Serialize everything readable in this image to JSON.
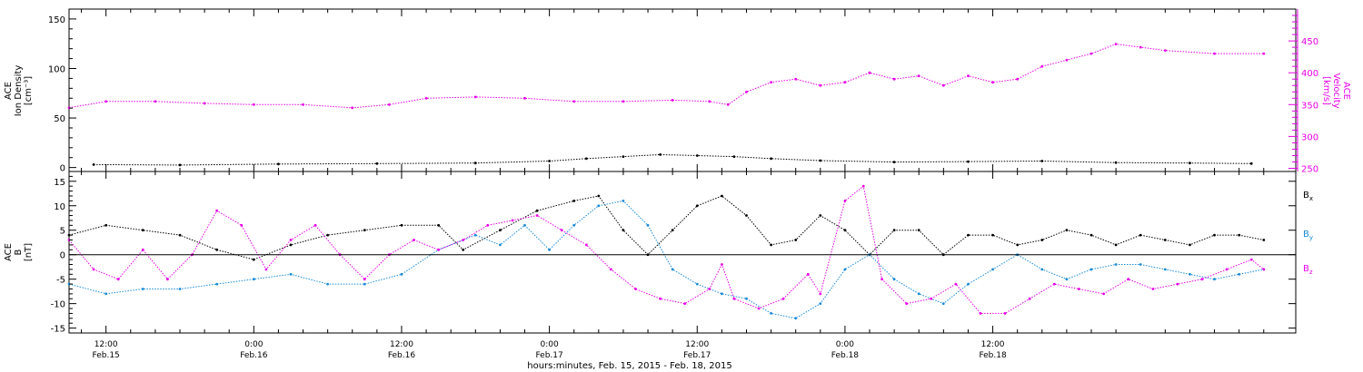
{
  "figure": {
    "xlabel": "hours:minutes, Feb. 15, 2015 - Feb. 18, 2015"
  },
  "x_ticks": [
    {
      "time": "12:00",
      "date": "Feb.15"
    },
    {
      "time": "0:00",
      "date": "Feb.16"
    },
    {
      "time": "12:00",
      "date": "Feb.16"
    },
    {
      "time": "0:00",
      "date": "Feb.17"
    },
    {
      "time": "12:00",
      "date": "Feb.17"
    },
    {
      "time": "0:00",
      "date": "Feb.18"
    },
    {
      "time": "12:00",
      "date": "Feb.18"
    }
  ],
  "colors": {
    "black": "#000000",
    "magenta": "#e600e6",
    "blue": "#1a8ad6"
  },
  "chart_data": [
    {
      "type": "scatter",
      "panel": "top",
      "left_axis_label": [
        "ACE",
        "Ion Density",
        "[cm⁻³]"
      ],
      "right_axis_label": [
        "ACE",
        "Velocity",
        "[km/s]"
      ],
      "left_ylim": [
        -4,
        160
      ],
      "left_yticks": [
        "0",
        "50",
        "100",
        "150"
      ],
      "right_ylim": [
        245,
        500
      ],
      "right_yticks": [
        "250",
        "300",
        "350",
        "400",
        "450"
      ],
      "x_range_hours": [
        9.0,
        108.6
      ],
      "series": [
        {
          "name": "Ion Density",
          "axis": "left",
          "color": "#000000",
          "points": [
            [
              11.0,
              3.0
            ],
            [
              18.0,
              2.5
            ],
            [
              26.0,
              3.5
            ],
            [
              34.0,
              4.0
            ],
            [
              42.0,
              4.5
            ],
            [
              48.0,
              6.5
            ],
            [
              51.0,
              9.0
            ],
            [
              54.0,
              11.0
            ],
            [
              57.0,
              13.0
            ],
            [
              60.0,
              12.0
            ],
            [
              63.0,
              11.0
            ],
            [
              66.0,
              9.0
            ],
            [
              70.0,
              7.0
            ],
            [
              76.0,
              5.5
            ],
            [
              82.0,
              6.0
            ],
            [
              88.0,
              6.5
            ],
            [
              94.0,
              5.0
            ],
            [
              100.0,
              4.5
            ],
            [
              105.0,
              4.0
            ]
          ]
        },
        {
          "name": "Velocity",
          "axis": "right",
          "color": "#e600e6",
          "points": [
            [
              9.0,
              345.0
            ],
            [
              12.0,
              355.0
            ],
            [
              16.0,
              355.0
            ],
            [
              20.0,
              352.0
            ],
            [
              24.0,
              350.0
            ],
            [
              28.0,
              350.0
            ],
            [
              32.0,
              345.0
            ],
            [
              35.0,
              350.0
            ],
            [
              38.0,
              360.0
            ],
            [
              42.0,
              362.0
            ],
            [
              46.0,
              360.0
            ],
            [
              50.0,
              355.0
            ],
            [
              54.0,
              355.0
            ],
            [
              58.0,
              357.0
            ],
            [
              61.0,
              355.0
            ],
            [
              62.5,
              350.0
            ],
            [
              64.0,
              370.0
            ],
            [
              66.0,
              385.0
            ],
            [
              68.0,
              390.0
            ],
            [
              70.0,
              380.0
            ],
            [
              72.0,
              385.0
            ],
            [
              74.0,
              400.0
            ],
            [
              76.0,
              390.0
            ],
            [
              78.0,
              395.0
            ],
            [
              80.0,
              380.0
            ],
            [
              82.0,
              395.0
            ],
            [
              84.0,
              385.0
            ],
            [
              86.0,
              390.0
            ],
            [
              88.0,
              410.0
            ],
            [
              90.0,
              420.0
            ],
            [
              92.0,
              430.0
            ],
            [
              94.0,
              445.0
            ],
            [
              96.0,
              440.0
            ],
            [
              98.0,
              435.0
            ],
            [
              102.0,
              430.0
            ],
            [
              106.0,
              430.0
            ]
          ]
        }
      ]
    },
    {
      "type": "scatter",
      "panel": "bottom",
      "left_axis_label": [
        "ACE",
        "B",
        "[nT]"
      ],
      "ylim": [
        -16,
        17
      ],
      "yticks": [
        "-15",
        "-10",
        "-5",
        "0",
        "5",
        "10",
        "15"
      ],
      "x_range_hours": [
        9.0,
        108.6
      ],
      "zero_line": true,
      "legend": [
        "Bx",
        "By",
        "Bz"
      ],
      "series": [
        {
          "name": "Bx",
          "color": "#000000",
          "points": [
            [
              9.0,
              4.0
            ],
            [
              12.0,
              6.0
            ],
            [
              15.0,
              5.0
            ],
            [
              18.0,
              4.0
            ],
            [
              21.0,
              1.0
            ],
            [
              24.0,
              -1.0
            ],
            [
              27.0,
              2.0
            ],
            [
              30.0,
              4.0
            ],
            [
              33.0,
              5.0
            ],
            [
              36.0,
              6.0
            ],
            [
              39.0,
              6.0
            ],
            [
              41.0,
              1.0
            ],
            [
              44.0,
              5.0
            ],
            [
              47.0,
              9.0
            ],
            [
              50.0,
              11.0
            ],
            [
              52.0,
              12.0
            ],
            [
              54.0,
              5.0
            ],
            [
              56.0,
              0.0
            ],
            [
              58.0,
              5.0
            ],
            [
              60.0,
              10.0
            ],
            [
              62.0,
              12.0
            ],
            [
              64.0,
              8.0
            ],
            [
              66.0,
              2.0
            ],
            [
              68.0,
              3.0
            ],
            [
              70.0,
              8.0
            ],
            [
              72.0,
              5.0
            ],
            [
              74.0,
              0.0
            ],
            [
              76.0,
              5.0
            ],
            [
              78.0,
              5.0
            ],
            [
              80.0,
              0.0
            ],
            [
              82.0,
              4.0
            ],
            [
              84.0,
              4.0
            ],
            [
              86.0,
              2.0
            ],
            [
              88.0,
              3.0
            ],
            [
              90.0,
              5.0
            ],
            [
              92.0,
              4.0
            ],
            [
              94.0,
              2.0
            ],
            [
              96.0,
              4.0
            ],
            [
              98.0,
              3.0
            ],
            [
              100.0,
              2.0
            ],
            [
              102.0,
              4.0
            ],
            [
              104.0,
              4.0
            ],
            [
              106.0,
              3.0
            ]
          ]
        },
        {
          "name": "By",
          "color": "#1a8ad6",
          "points": [
            [
              9.0,
              -6.0
            ],
            [
              12.0,
              -8.0
            ],
            [
              15.0,
              -7.0
            ],
            [
              18.0,
              -7.0
            ],
            [
              21.0,
              -6.0
            ],
            [
              24.0,
              -5.0
            ],
            [
              27.0,
              -4.0
            ],
            [
              30.0,
              -6.0
            ],
            [
              33.0,
              -6.0
            ],
            [
              36.0,
              -4.0
            ],
            [
              39.0,
              1.0
            ],
            [
              42.0,
              4.0
            ],
            [
              44.0,
              2.0
            ],
            [
              46.0,
              6.0
            ],
            [
              48.0,
              1.0
            ],
            [
              50.0,
              6.0
            ],
            [
              52.0,
              10.0
            ],
            [
              54.0,
              11.0
            ],
            [
              56.0,
              6.0
            ],
            [
              58.0,
              -3.0
            ],
            [
              60.0,
              -6.0
            ],
            [
              62.0,
              -8.0
            ],
            [
              64.0,
              -9.0
            ],
            [
              66.0,
              -12.0
            ],
            [
              68.0,
              -13.0
            ],
            [
              70.0,
              -10.0
            ],
            [
              72.0,
              -3.0
            ],
            [
              74.0,
              0.0
            ],
            [
              76.0,
              -5.0
            ],
            [
              78.0,
              -8.0
            ],
            [
              80.0,
              -10.0
            ],
            [
              82.0,
              -6.0
            ],
            [
              84.0,
              -3.0
            ],
            [
              86.0,
              0.0
            ],
            [
              88.0,
              -3.0
            ],
            [
              90.0,
              -5.0
            ],
            [
              92.0,
              -3.0
            ],
            [
              94.0,
              -2.0
            ],
            [
              96.0,
              -2.0
            ],
            [
              98.0,
              -3.0
            ],
            [
              100.0,
              -4.0
            ],
            [
              102.0,
              -5.0
            ],
            [
              104.0,
              -4.0
            ],
            [
              106.0,
              -3.0
            ]
          ]
        },
        {
          "name": "Bz",
          "color": "#e600e6",
          "points": [
            [
              9.0,
              3.0
            ],
            [
              11.0,
              -3.0
            ],
            [
              13.0,
              -5.0
            ],
            [
              15.0,
              1.0
            ],
            [
              17.0,
              -5.0
            ],
            [
              19.0,
              0.0
            ],
            [
              21.0,
              9.0
            ],
            [
              23.0,
              6.0
            ],
            [
              25.0,
              -3.0
            ],
            [
              27.0,
              3.0
            ],
            [
              29.0,
              6.0
            ],
            [
              31.0,
              0.0
            ],
            [
              33.0,
              -5.0
            ],
            [
              35.0,
              0.0
            ],
            [
              37.0,
              3.0
            ],
            [
              39.0,
              1.0
            ],
            [
              41.0,
              3.0
            ],
            [
              43.0,
              6.0
            ],
            [
              45.0,
              7.0
            ],
            [
              47.0,
              8.0
            ],
            [
              49.0,
              5.0
            ],
            [
              51.0,
              2.0
            ],
            [
              53.0,
              -3.0
            ],
            [
              55.0,
              -7.0
            ],
            [
              57.0,
              -9.0
            ],
            [
              59.0,
              -10.0
            ],
            [
              61.0,
              -7.0
            ],
            [
              62.0,
              -2.0
            ],
            [
              63.0,
              -9.0
            ],
            [
              65.0,
              -11.0
            ],
            [
              67.0,
              -9.0
            ],
            [
              69.0,
              -4.0
            ],
            [
              70.0,
              -8.0
            ],
            [
              72.0,
              11.0
            ],
            [
              73.5,
              14.0
            ],
            [
              75.0,
              -5.0
            ],
            [
              77.0,
              -10.0
            ],
            [
              79.0,
              -9.0
            ],
            [
              81.0,
              -6.0
            ],
            [
              83.0,
              -12.0
            ],
            [
              85.0,
              -12.0
            ],
            [
              87.0,
              -9.0
            ],
            [
              89.0,
              -6.0
            ],
            [
              91.0,
              -7.0
            ],
            [
              93.0,
              -8.0
            ],
            [
              95.0,
              -5.0
            ],
            [
              97.0,
              -7.0
            ],
            [
              99.0,
              -6.0
            ],
            [
              101.0,
              -5.0
            ],
            [
              103.0,
              -3.0
            ],
            [
              105.0,
              -1.0
            ],
            [
              106.0,
              -3.0
            ]
          ]
        }
      ]
    }
  ]
}
